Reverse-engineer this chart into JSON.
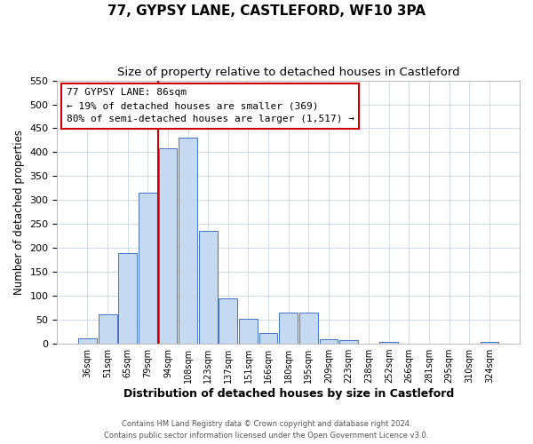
{
  "title": "77, GYPSY LANE, CASTLEFORD, WF10 3PA",
  "subtitle": "Size of property relative to detached houses in Castleford",
  "xlabel": "Distribution of detached houses by size in Castleford",
  "ylabel": "Number of detached properties",
  "bar_labels": [
    "36sqm",
    "51sqm",
    "65sqm",
    "79sqm",
    "94sqm",
    "108sqm",
    "123sqm",
    "137sqm",
    "151sqm",
    "166sqm",
    "180sqm",
    "195sqm",
    "209sqm",
    "223sqm",
    "238sqm",
    "252sqm",
    "266sqm",
    "281sqm",
    "295sqm",
    "310sqm",
    "324sqm"
  ],
  "bar_values": [
    12,
    62,
    190,
    315,
    408,
    430,
    235,
    95,
    53,
    22,
    65,
    65,
    10,
    8,
    0,
    3,
    0,
    1,
    0,
    0,
    3
  ],
  "bar_color": "#c5d9f1",
  "bar_edge_color": "#4472c4",
  "vline_color": "#cc0000",
  "annotation_line1": "77 GYPSY LANE: 86sqm",
  "annotation_line2": "← 19% of detached houses are smaller (369)",
  "annotation_line3": "80% of semi-detached houses are larger (1,517) →",
  "annotation_box_color": "#ffffff",
  "annotation_box_edge_color": "#cc0000",
  "ylim": [
    0,
    550
  ],
  "yticks": [
    0,
    50,
    100,
    150,
    200,
    250,
    300,
    350,
    400,
    450,
    500,
    550
  ],
  "title_fontsize": 11,
  "subtitle_fontsize": 9.5,
  "xlabel_fontsize": 9,
  "ylabel_fontsize": 8.5,
  "footer_line1": "Contains HM Land Registry data © Crown copyright and database right 2024.",
  "footer_line2": "Contains public sector information licensed under the Open Government Licence v3.0.",
  "background_color": "#ffffff",
  "grid_color": "#c8d4e8"
}
